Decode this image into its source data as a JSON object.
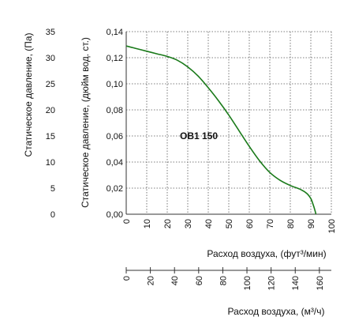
{
  "chart_data": {
    "type": "line",
    "curve_color": "#1a7a1a",
    "grid": true,
    "annotation": "OB1 150",
    "y_left": {
      "label": "Статическое давление, (Па)",
      "range": [
        0,
        35
      ],
      "ticks": [
        0,
        5,
        10,
        15,
        20,
        25,
        30,
        35
      ],
      "tick_labels": [
        "0",
        "5",
        "10",
        "15",
        "20",
        "25",
        "30",
        "35"
      ]
    },
    "y_right": {
      "label": "Статическое давление, (дюйм вод. ст.)",
      "range": [
        0,
        0.14
      ],
      "ticks": [
        0,
        0.02,
        0.04,
        0.06,
        0.08,
        0.1,
        0.12,
        0.14
      ],
      "tick_labels": [
        "0,00",
        "0,02",
        "0,04",
        "0,06",
        "0,08",
        "0,10",
        "0,12",
        "0,14"
      ]
    },
    "x_top": {
      "label": "Расход воздуха, (фут³/мин)",
      "range": [
        0,
        100
      ],
      "ticks": [
        0,
        10,
        20,
        30,
        40,
        50,
        60,
        70,
        80,
        90,
        100
      ],
      "tick_labels": [
        "0",
        "10",
        "20",
        "30",
        "40",
        "50",
        "60",
        "70",
        "80",
        "90",
        "100"
      ]
    },
    "x_bottom": {
      "label": "Расход воздуха, (м³/ч)",
      "range": [
        0,
        169.9
      ],
      "ticks": [
        0,
        20,
        40,
        60,
        80,
        100,
        120,
        140,
        160
      ],
      "tick_labels": [
        "0",
        "20",
        "40",
        "60",
        "80",
        "100",
        "120",
        "140",
        "160"
      ]
    },
    "series": [
      {
        "x": [
          0,
          5,
          10,
          15,
          20,
          25,
          30,
          35,
          40,
          45,
          50,
          55,
          60,
          65,
          70,
          75,
          80,
          85,
          88,
          90,
          91,
          92,
          92.5
        ],
        "y": [
          0.129,
          0.127,
          0.125,
          0.123,
          0.121,
          0.118,
          0.113,
          0.106,
          0.097,
          0.087,
          0.076,
          0.064,
          0.052,
          0.041,
          0.032,
          0.026,
          0.022,
          0.019,
          0.016,
          0.012,
          0.008,
          0.003,
          0.0
        ]
      }
    ]
  }
}
